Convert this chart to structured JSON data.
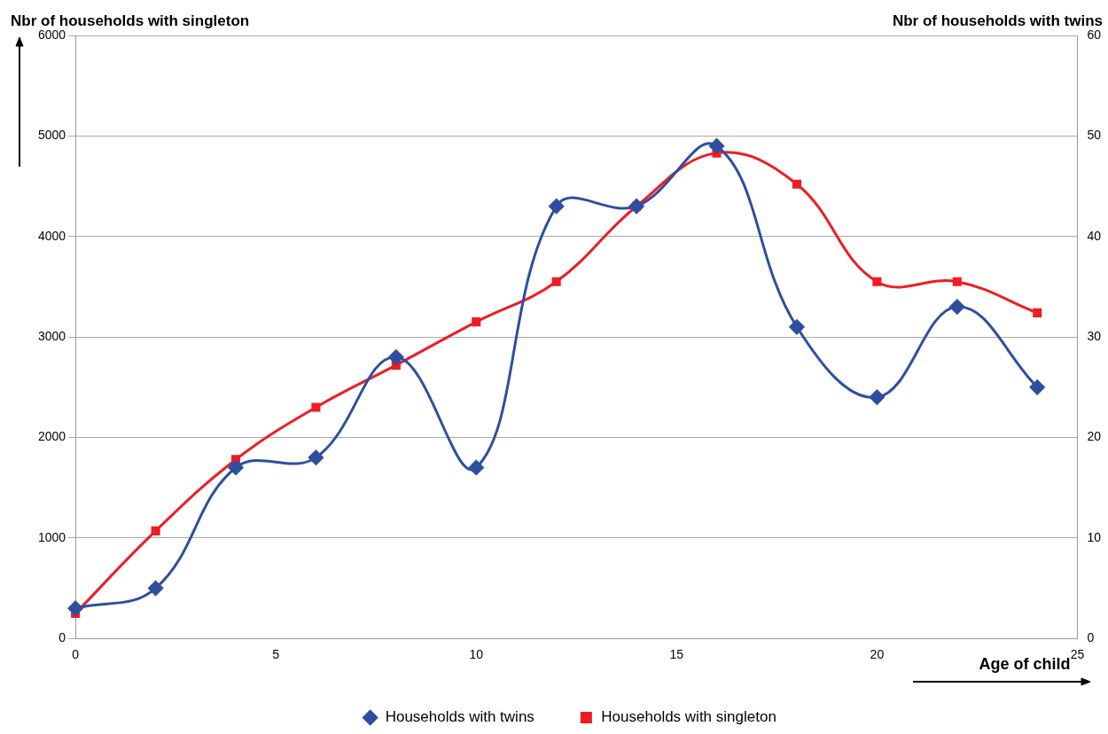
{
  "chart_data": {
    "type": "line",
    "ylabel": "Nbr of households with singleton",
    "y2label": "Nbr of households with twins",
    "xlabel": "Age of child",
    "x": [
      0,
      2,
      4,
      6,
      8,
      10,
      12,
      14,
      16,
      18,
      20,
      22,
      24
    ],
    "series": [
      {
        "name": "Households with singleton",
        "color": "#ee1c25",
        "marker": "square",
        "values": [
          250,
          1070,
          1780,
          2300,
          2720,
          3150,
          3550,
          4300,
          4830,
          4520,
          3550,
          3550,
          3240
        ]
      },
      {
        "name": "Households with twins",
        "color": "#2e4f9f",
        "marker": "diamond",
        "axis": "y2",
        "values": [
          3,
          5,
          17,
          18,
          28,
          17,
          43,
          43,
          49,
          31,
          24,
          33,
          25
        ]
      }
    ],
    "xlim": [
      0,
      25
    ],
    "xticks": [
      0,
      5,
      10,
      15,
      20,
      25
    ],
    "ylim": [
      0,
      6000
    ],
    "yticks": [
      0,
      1000,
      2000,
      3000,
      4000,
      5000,
      6000
    ],
    "y2lim": [
      0,
      60
    ],
    "y2ticks": [
      0,
      10,
      20,
      30,
      40,
      50,
      60
    ],
    "grid": "y",
    "legend": "bottom",
    "line_style": "solid"
  }
}
